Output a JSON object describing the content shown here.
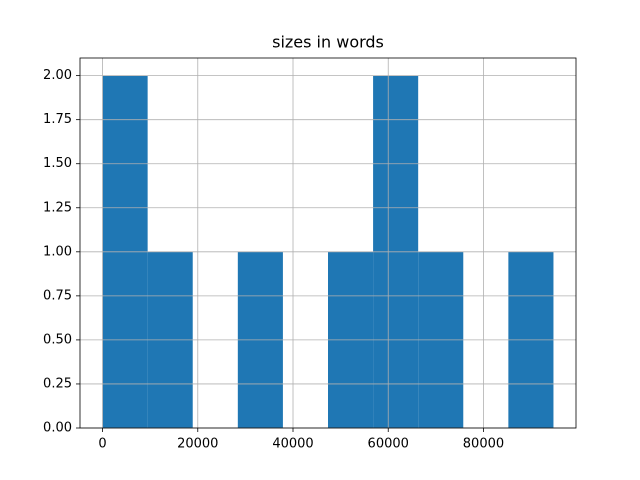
{
  "chart_data": {
    "type": "histogram",
    "title": "sizes in words",
    "bins": [
      0,
      9470,
      18940,
      28410,
      37880,
      47350,
      56820,
      66290,
      75760,
      85230,
      94700
    ],
    "counts": [
      2,
      1,
      0,
      1,
      0,
      1,
      2,
      1,
      0,
      1
    ],
    "color": "#1f77b4",
    "xlim": [
      -4735,
      99435
    ],
    "xticks": [
      0,
      20000,
      40000,
      60000,
      80000
    ],
    "ylim": [
      0,
      2.1
    ],
    "yticks": [
      {
        "value": 0,
        "label": "0.00"
      },
      {
        "value": 0.25,
        "label": "0.25"
      },
      {
        "value": 0.5,
        "label": "0.50"
      },
      {
        "value": 0.75,
        "label": "0.75"
      },
      {
        "value": 1,
        "label": "1.00"
      },
      {
        "value": 1.25,
        "label": "1.25"
      },
      {
        "value": 1.5,
        "label": "1.50"
      },
      {
        "value": 1.75,
        "label": "1.75"
      },
      {
        "value": 2,
        "label": "2.00"
      }
    ],
    "grid": true
  }
}
